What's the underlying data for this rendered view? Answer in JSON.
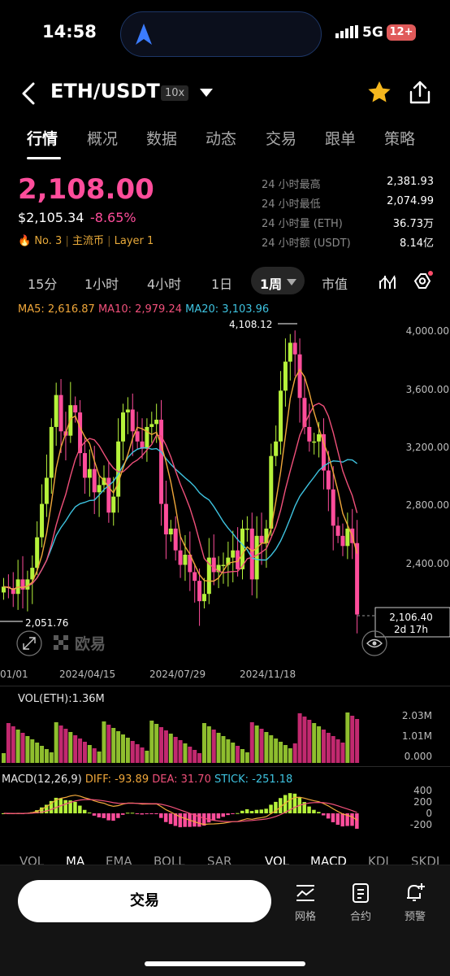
{
  "status": {
    "time": "14:58",
    "network": "5G",
    "battery": "12+"
  },
  "header": {
    "pair": "ETH/USDT",
    "leverage": "10x"
  },
  "tabs": [
    {
      "label": "行情",
      "active": true
    },
    {
      "label": "概况"
    },
    {
      "label": "数据"
    },
    {
      "label": "动态"
    },
    {
      "label": "交易"
    },
    {
      "label": "跟单"
    },
    {
      "label": "策略"
    }
  ],
  "ticker": {
    "price": "2,108.00",
    "usd_price": "$2,105.34",
    "change": "-8.65%",
    "rank": "No. 3",
    "tag1": "主流币",
    "tag2": "Layer 1",
    "stats": [
      {
        "label": "24 小时最高",
        "value": "2,381.93"
      },
      {
        "label": "24 小时最低",
        "value": "2,074.99"
      },
      {
        "label": "24 小时量 (ETH)",
        "value": "36.73万"
      },
      {
        "label": "24 小时额 (USDT)",
        "value": "8.14亿"
      }
    ]
  },
  "periods": [
    "15分",
    "1小时",
    "4小时",
    "1日",
    "1周",
    "市值"
  ],
  "active_period": "1周",
  "ma_legend": {
    "ma5": "MA5: 2,616.87",
    "ma10": "MA10: 2,979.24",
    "ma20": "MA20: 3,103.96"
  },
  "chart": {
    "y_ticks": [
      "4,000.00",
      "3,600.00",
      "3,200.00",
      "2,800.00",
      "2,400.00"
    ],
    "x_ticks": [
      "01/01",
      "2024/04/15",
      "2024/07/29",
      "2024/11/18"
    ],
    "high_label": "4,108.12",
    "low_label": "2,051.76",
    "current_price": "2,106.40",
    "countdown": "2d 17h",
    "watermark": "欧易"
  },
  "volume": {
    "label": "VOL(ETH):1.36M",
    "ticks": [
      "2.03M",
      "1.01M",
      "0.000"
    ]
  },
  "macd": {
    "title": "MACD(12,26,9)",
    "diff": "DIFF: -93.89",
    "dea": "DEA: 31.70",
    "stick": "STICK: -251.18",
    "ticks": [
      "400",
      "200",
      "0",
      "-200"
    ]
  },
  "indicators": [
    "VOL",
    "MA",
    "EMA",
    "BOLL",
    "SAR",
    "VOL",
    "MACD",
    "KDJ",
    "SKDJ"
  ],
  "bottom": {
    "trade": "交易",
    "grid": "网格",
    "contract": "合约",
    "alert": "预警"
  },
  "colors": {
    "up": "#b6f23b",
    "down": "#ff4d9b",
    "ma5": "#f0a73a",
    "ma10": "#f0507a",
    "ma20": "#3ec3e0"
  }
}
